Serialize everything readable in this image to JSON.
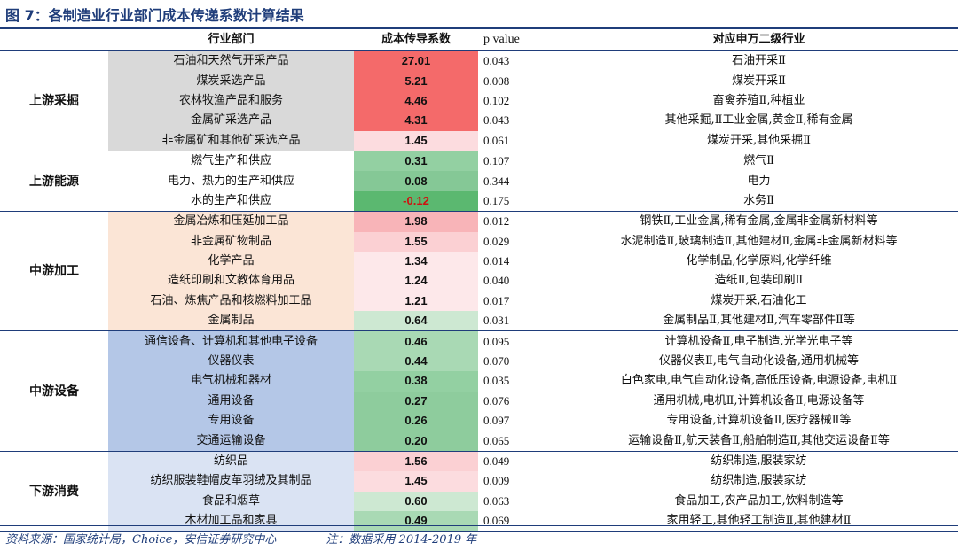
{
  "title": "图 7：各制造业行业部门成本传递系数计算结果",
  "headers": {
    "sector": "行业部门",
    "coef": "成本传导系数",
    "pval": "p value",
    "mapping": "对应申万二级行业"
  },
  "colors": {
    "upstream_mining": "#d9d9d9",
    "upstream_energy": "#ffffff",
    "mid_processing": "#fbe5d6",
    "mid_equipment": "#b4c7e7",
    "downstream": "#dae3f3"
  },
  "groups": [
    {
      "name": "上游采掘",
      "rows": [
        {
          "sector": "石油和天然气开采产品",
          "coef": "27.01",
          "pval": "0.043",
          "mapping": "石油开采Ⅱ",
          "cval": 27.01
        },
        {
          "sector": "煤炭采选产品",
          "coef": "5.21",
          "pval": "0.008",
          "mapping": "煤炭开采Ⅱ",
          "cval": 5.21
        },
        {
          "sector": "农林牧渔产品和服务",
          "coef": "4.46",
          "pval": "0.102",
          "mapping": "畜禽养殖Ⅱ,种植业",
          "cval": 4.46
        },
        {
          "sector": "金属矿采选产品",
          "coef": "4.31",
          "pval": "0.043",
          "mapping": "其他采掘,Ⅱ工业金属,黄金Ⅱ,稀有金属",
          "cval": 4.31
        },
        {
          "sector": "非金属矿和其他矿采选产品",
          "coef": "1.45",
          "pval": "0.061",
          "mapping": "煤炭开采,其他采掘Ⅱ",
          "cval": 1.45
        }
      ]
    },
    {
      "name": "上游能源",
      "rows": [
        {
          "sector": "燃气生产和供应",
          "coef": "0.31",
          "pval": "0.107",
          "mapping": "燃气Ⅱ",
          "cval": 0.31
        },
        {
          "sector": "电力、热力的生产和供应",
          "coef": "0.08",
          "pval": "0.344",
          "mapping": "电力",
          "cval": 0.08
        },
        {
          "sector": "水的生产和供应",
          "coef": "-0.12",
          "pval": "0.175",
          "mapping": "水务Ⅱ",
          "cval": -0.12
        }
      ]
    },
    {
      "name": "中游加工",
      "rows": [
        {
          "sector": "金属冶炼和压延加工品",
          "coef": "1.98",
          "pval": "0.012",
          "mapping": "钢铁Ⅱ,工业金属,稀有金属,金属非金属新材料等",
          "cval": 1.98
        },
        {
          "sector": "非金属矿物制品",
          "coef": "1.55",
          "pval": "0.029",
          "mapping": "水泥制造Ⅱ,玻璃制造Ⅱ,其他建材Ⅱ,金属非金属新材料等",
          "cval": 1.55
        },
        {
          "sector": "化学产品",
          "coef": "1.34",
          "pval": "0.014",
          "mapping": "化学制品,化学原料,化学纤维",
          "cval": 1.34
        },
        {
          "sector": "造纸印刷和文教体育用品",
          "coef": "1.24",
          "pval": "0.040",
          "mapping": "造纸Ⅱ,包装印刷Ⅱ",
          "cval": 1.24
        },
        {
          "sector": "石油、炼焦产品和核燃料加工品",
          "coef": "1.21",
          "pval": "0.017",
          "mapping": "煤炭开采,石油化工",
          "cval": 1.21
        },
        {
          "sector": "金属制品",
          "coef": "0.64",
          "pval": "0.031",
          "mapping": "金属制品Ⅱ,其他建材Ⅱ,汽车零部件Ⅱ等",
          "cval": 0.64
        }
      ]
    },
    {
      "name": "中游设备",
      "rows": [
        {
          "sector": "通信设备、计算机和其他电子设备",
          "coef": "0.46",
          "pval": "0.095",
          "mapping": "计算机设备Ⅱ,电子制造,光学光电子等",
          "cval": 0.46
        },
        {
          "sector": "仪器仪表",
          "coef": "0.44",
          "pval": "0.070",
          "mapping": "仪器仪表Ⅱ,电气自动化设备,通用机械等",
          "cval": 0.44
        },
        {
          "sector": "电气机械和器材",
          "coef": "0.38",
          "pval": "0.035",
          "mapping": "白色家电,电气自动化设备,高低压设备,电源设备,电机Ⅱ",
          "cval": 0.38
        },
        {
          "sector": "通用设备",
          "coef": "0.27",
          "pval": "0.076",
          "mapping": "通用机械,电机Ⅱ,计算机设备Ⅱ,电源设备等",
          "cval": 0.27
        },
        {
          "sector": "专用设备",
          "coef": "0.26",
          "pval": "0.097",
          "mapping": "专用设备,计算机设备Ⅱ,医疗器械Ⅱ等",
          "cval": 0.26
        },
        {
          "sector": "交通运输设备",
          "coef": "0.20",
          "pval": "0.065",
          "mapping": "运输设备Ⅱ,航天装备Ⅱ,船舶制造Ⅱ,其他交运设备Ⅱ等",
          "cval": 0.2
        }
      ]
    },
    {
      "name": "下游消费",
      "rows": [
        {
          "sector": "纺织品",
          "coef": "1.56",
          "pval": "0.049",
          "mapping": "纺织制造,服装家纺",
          "cval": 1.56
        },
        {
          "sector": "纺织服装鞋帽皮革羽绒及其制品",
          "coef": "1.45",
          "pval": "0.009",
          "mapping": "纺织制造,服装家纺",
          "cval": 1.45
        },
        {
          "sector": "食品和烟草",
          "coef": "0.60",
          "pval": "0.063",
          "mapping": "食品加工,农产品加工,饮料制造等",
          "cval": 0.6
        },
        {
          "sector": "木材加工品和家具",
          "coef": "0.49",
          "pval": "0.069",
          "mapping": "家用轻工,其他轻工制造Ⅱ,其他建材Ⅱ",
          "cval": 0.49
        }
      ]
    }
  ],
  "footer": {
    "source": "资料来源：国家统计局，Choice，安信证券研究中心",
    "note": "注：数据采用 2014-2019 年"
  }
}
